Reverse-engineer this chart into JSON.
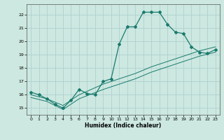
{
  "title": "",
  "xlabel": "Humidex (Indice chaleur)",
  "xlim": [
    -0.5,
    23.5
  ],
  "ylim": [
    14.5,
    22.8
  ],
  "xticks": [
    0,
    1,
    2,
    3,
    4,
    5,
    6,
    7,
    8,
    9,
    10,
    11,
    12,
    13,
    14,
    15,
    16,
    17,
    18,
    19,
    20,
    21,
    22,
    23
  ],
  "yticks": [
    15,
    16,
    17,
    18,
    19,
    20,
    21,
    22
  ],
  "background_color": "#cce8e0",
  "grid_color": "#aacccc",
  "line_color": "#1a7a6e",
  "line1_x": [
    0,
    1,
    2,
    3,
    4,
    5,
    6,
    7,
    8,
    9,
    10,
    11,
    12,
    13,
    14,
    15,
    16,
    17,
    18,
    19,
    20,
    21,
    22,
    23
  ],
  "line1_y": [
    16.2,
    16.0,
    15.7,
    15.3,
    15.0,
    15.6,
    16.4,
    16.1,
    16.0,
    17.0,
    17.2,
    19.8,
    21.1,
    21.1,
    22.2,
    22.2,
    22.2,
    21.3,
    20.7,
    20.6,
    19.6,
    19.2,
    19.1,
    19.4
  ],
  "line2_x": [
    0,
    2,
    4,
    6,
    9,
    11,
    13,
    15,
    17,
    19,
    21,
    23
  ],
  "line2_y": [
    16.0,
    15.7,
    15.2,
    16.0,
    16.8,
    17.2,
    17.6,
    18.1,
    18.5,
    18.9,
    19.3,
    19.6
  ],
  "line3_x": [
    0,
    2,
    4,
    6,
    9,
    11,
    13,
    15,
    17,
    19,
    21,
    23
  ],
  "line3_y": [
    15.8,
    15.5,
    14.9,
    15.7,
    16.4,
    16.8,
    17.2,
    17.7,
    18.1,
    18.5,
    18.9,
    19.2
  ]
}
